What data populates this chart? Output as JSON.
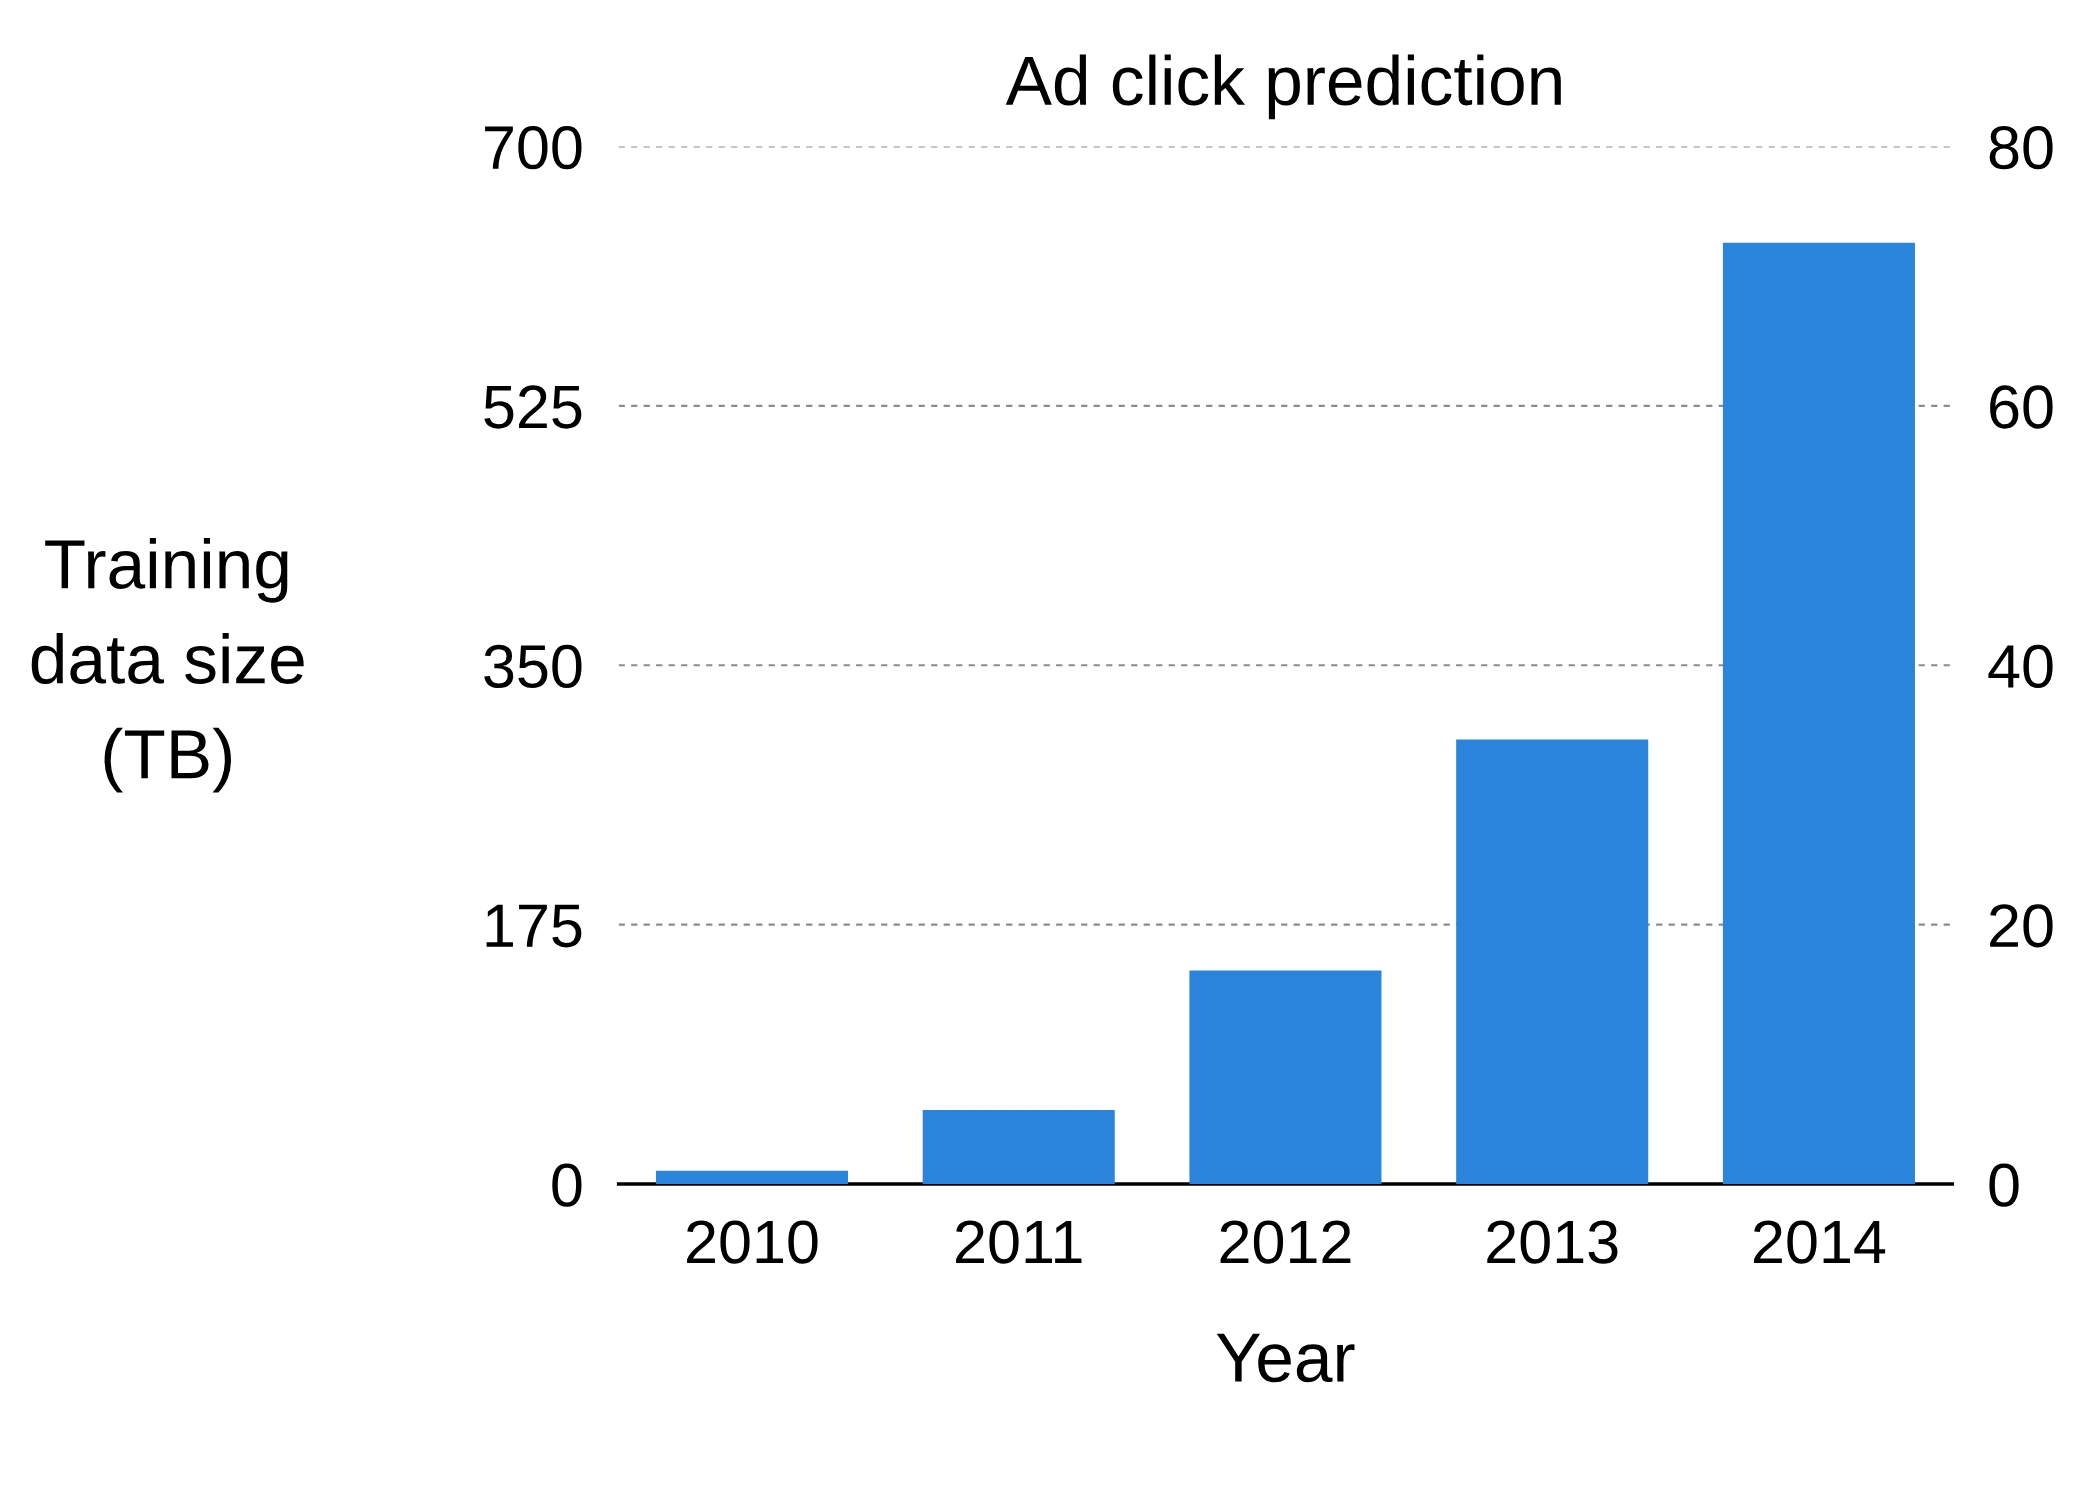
{
  "chart_data": {
    "type": "bar",
    "title": "Ad click prediction",
    "xlabel": "Year",
    "ylabel": "Training data size (TB)",
    "categories": [
      "2010",
      "2011",
      "2012",
      "2013",
      "2014"
    ],
    "values": [
      9,
      50,
      144,
      300,
      635
    ],
    "color": "#2a84dc",
    "ylim": [
      0,
      700
    ],
    "yticks": [
      0,
      175,
      350,
      525,
      700
    ],
    "y2lim": [
      0,
      80
    ],
    "y2ticks": [
      0,
      20,
      40,
      60,
      80
    ],
    "grid": "y"
  }
}
